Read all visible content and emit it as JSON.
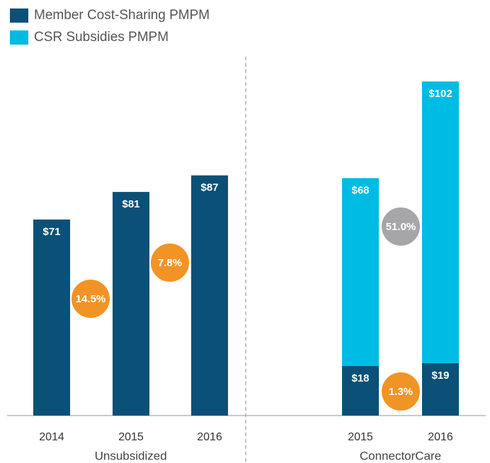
{
  "chart_data": {
    "type": "bar",
    "stacked": true,
    "categories": [
      "2014",
      "2015",
      "2016",
      "2015",
      "2016"
    ],
    "groups": [
      {
        "label": "Unsubsidized",
        "indices": [
          0,
          1,
          2
        ]
      },
      {
        "label": "ConnectorCare",
        "indices": [
          3,
          4
        ]
      }
    ],
    "series": [
      {
        "name": "Member Cost-Sharing PMPM",
        "color": "#0b5077",
        "values": [
          71,
          81,
          87,
          18,
          19
        ],
        "value_labels": [
          "$71",
          "$81",
          "$87",
          "$18",
          "$19"
        ]
      },
      {
        "name": "CSR Subsidies PMPM",
        "color": "#00bbe4",
        "values": [
          null,
          null,
          null,
          68,
          102
        ],
        "value_labels": [
          null,
          null,
          null,
          "$68",
          "$102"
        ]
      }
    ],
    "annotations": [
      {
        "value": 14.5,
        "label": "14.5%",
        "color": "#f29325"
      },
      {
        "value": 7.8,
        "label": "7.8%",
        "color": "#f29325"
      },
      {
        "value": 51.0,
        "label": "51.0%",
        "color": "#a6a6a8"
      },
      {
        "value": 1.3,
        "label": "1.3%",
        "color": "#f29325"
      }
    ],
    "ylim": [
      0,
      130
    ],
    "legend": "top-left"
  }
}
